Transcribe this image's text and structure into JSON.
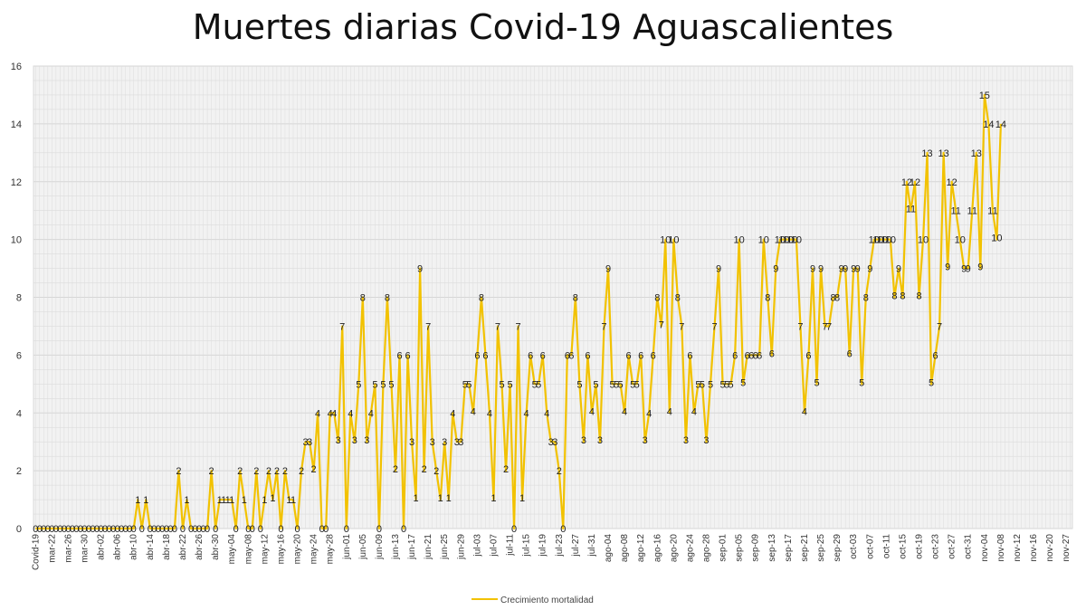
{
  "chart_data": {
    "type": "line",
    "title": "Muertes diarias Covid-19 Aguascalientes",
    "xlabel": "",
    "ylabel": "",
    "ylim": [
      0,
      16
    ],
    "yticks": [
      0,
      2,
      4,
      6,
      8,
      10,
      12,
      14,
      16
    ],
    "grid": true,
    "legend_position": "bottom",
    "line_color": "#f2c200",
    "x_tick_labels": [
      "Covid-19",
      "mar-22",
      "mar-26",
      "mar-30",
      "abr-02",
      "abr-06",
      "abr-10",
      "abr-14",
      "abr-18",
      "abr-22",
      "abr-26",
      "abr-30",
      "may-04",
      "may-08",
      "may-12",
      "may-16",
      "may-20",
      "may-24",
      "may-28",
      "jun-01",
      "jun-05",
      "jun-09",
      "jun-13",
      "jun-17",
      "jun-21",
      "jun-25",
      "jun-29",
      "jul-03",
      "jul-07",
      "jul-11",
      "jul-15",
      "jul-19",
      "jul-23",
      "jul-27",
      "jul-31",
      "ago-04",
      "ago-08",
      "ago-12",
      "ago-16",
      "ago-20",
      "ago-24",
      "ago-28",
      "sep-01",
      "sep-05",
      "sep-09",
      "sep-13",
      "sep-17",
      "sep-21",
      "sep-25",
      "sep-29",
      "oct-03",
      "oct-07",
      "oct-11",
      "oct-15",
      "oct-19",
      "oct-23",
      "oct-27",
      "oct-31",
      "nov-04",
      "nov-08",
      "nov-12",
      "nov-16",
      "nov-20",
      "nov-27"
    ],
    "series": [
      {
        "name": "Crecimiento mortalidad",
        "values": [
          0,
          0,
          0,
          0,
          0,
          0,
          0,
          0,
          0,
          0,
          0,
          0,
          0,
          0,
          0,
          0,
          0,
          0,
          0,
          0,
          0,
          0,
          0,
          0,
          0,
          1,
          0,
          1,
          0,
          0,
          0,
          0,
          0,
          0,
          0,
          2,
          0,
          1,
          0,
          0,
          0,
          0,
          0,
          2,
          0,
          1,
          1,
          1,
          1,
          0,
          2,
          1,
          0,
          0,
          2,
          0,
          1,
          2,
          1,
          2,
          0,
          2,
          1,
          1,
          0,
          2,
          3,
          3,
          2,
          4,
          0,
          0,
          4,
          4,
          3,
          7,
          0,
          4,
          3,
          5,
          8,
          3,
          4,
          5,
          0,
          5,
          8,
          5,
          2,
          6,
          0,
          6,
          3,
          1,
          9,
          2,
          7,
          3,
          2,
          1,
          3,
          1,
          4,
          3,
          3,
          5,
          5,
          4,
          6,
          8,
          6,
          4,
          1,
          7,
          5,
          2,
          5,
          0,
          7,
          1,
          4,
          6,
          5,
          5,
          6,
          4,
          3,
          3,
          2,
          0,
          6,
          6,
          8,
          5,
          3,
          6,
          4,
          5,
          3,
          7,
          9,
          5,
          5,
          5,
          4,
          6,
          5,
          5,
          6,
          3,
          4,
          6,
          8,
          7,
          10,
          4,
          10,
          8,
          7,
          3,
          6,
          4,
          5,
          5,
          3,
          5,
          7,
          9,
          5,
          5,
          5,
          6,
          10,
          5,
          6,
          6,
          6,
          6,
          10,
          8,
          6,
          9,
          10,
          10,
          10,
          10,
          10,
          7,
          4,
          6,
          9,
          5,
          9,
          7,
          7,
          8,
          8,
          9,
          9,
          6,
          9,
          9,
          5,
          8,
          9,
          10,
          10,
          10,
          10,
          10,
          8,
          9,
          8,
          12,
          11,
          12,
          8,
          10,
          13,
          5,
          6,
          7,
          13,
          9,
          12,
          11,
          10,
          9,
          9,
          11,
          13,
          9,
          15,
          14,
          11,
          10,
          14
        ]
      }
    ]
  }
}
